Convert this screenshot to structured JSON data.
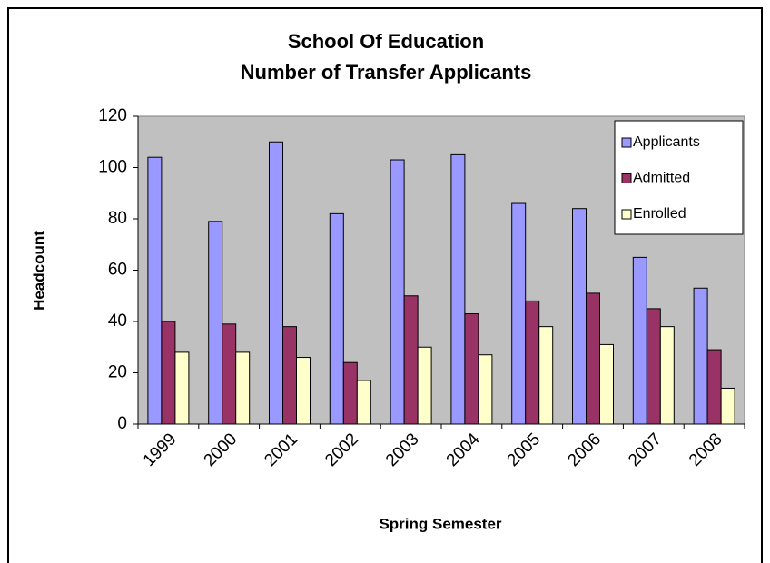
{
  "chart_data": {
    "type": "bar",
    "title": "School Of Education",
    "subtitle": "Number of Transfer Applicants",
    "x_label": "Spring Semester",
    "y_label": "Headcount",
    "categories": [
      "1999",
      "2000",
      "2001",
      "2002",
      "2003",
      "2004",
      "2005",
      "2006",
      "2007",
      "2008"
    ],
    "series": [
      {
        "name": "Applicants",
        "color": "#9999ff",
        "values": [
          104,
          79,
          110,
          82,
          103,
          105,
          86,
          84,
          65,
          53
        ]
      },
      {
        "name": "Admitted",
        "color": "#993366",
        "values": [
          40,
          39,
          38,
          24,
          50,
          43,
          48,
          51,
          45,
          29
        ]
      },
      {
        "name": "Enrolled",
        "color": "#ffffcc",
        "values": [
          28,
          28,
          26,
          17,
          30,
          27,
          38,
          31,
          38,
          14
        ]
      }
    ],
    "ylim": [
      0,
      120
    ],
    "yticks": [
      0,
      20,
      40,
      60,
      80,
      100,
      120
    ],
    "grid": false,
    "legend": "upper right",
    "plot_background": "#c0c0c0"
  }
}
